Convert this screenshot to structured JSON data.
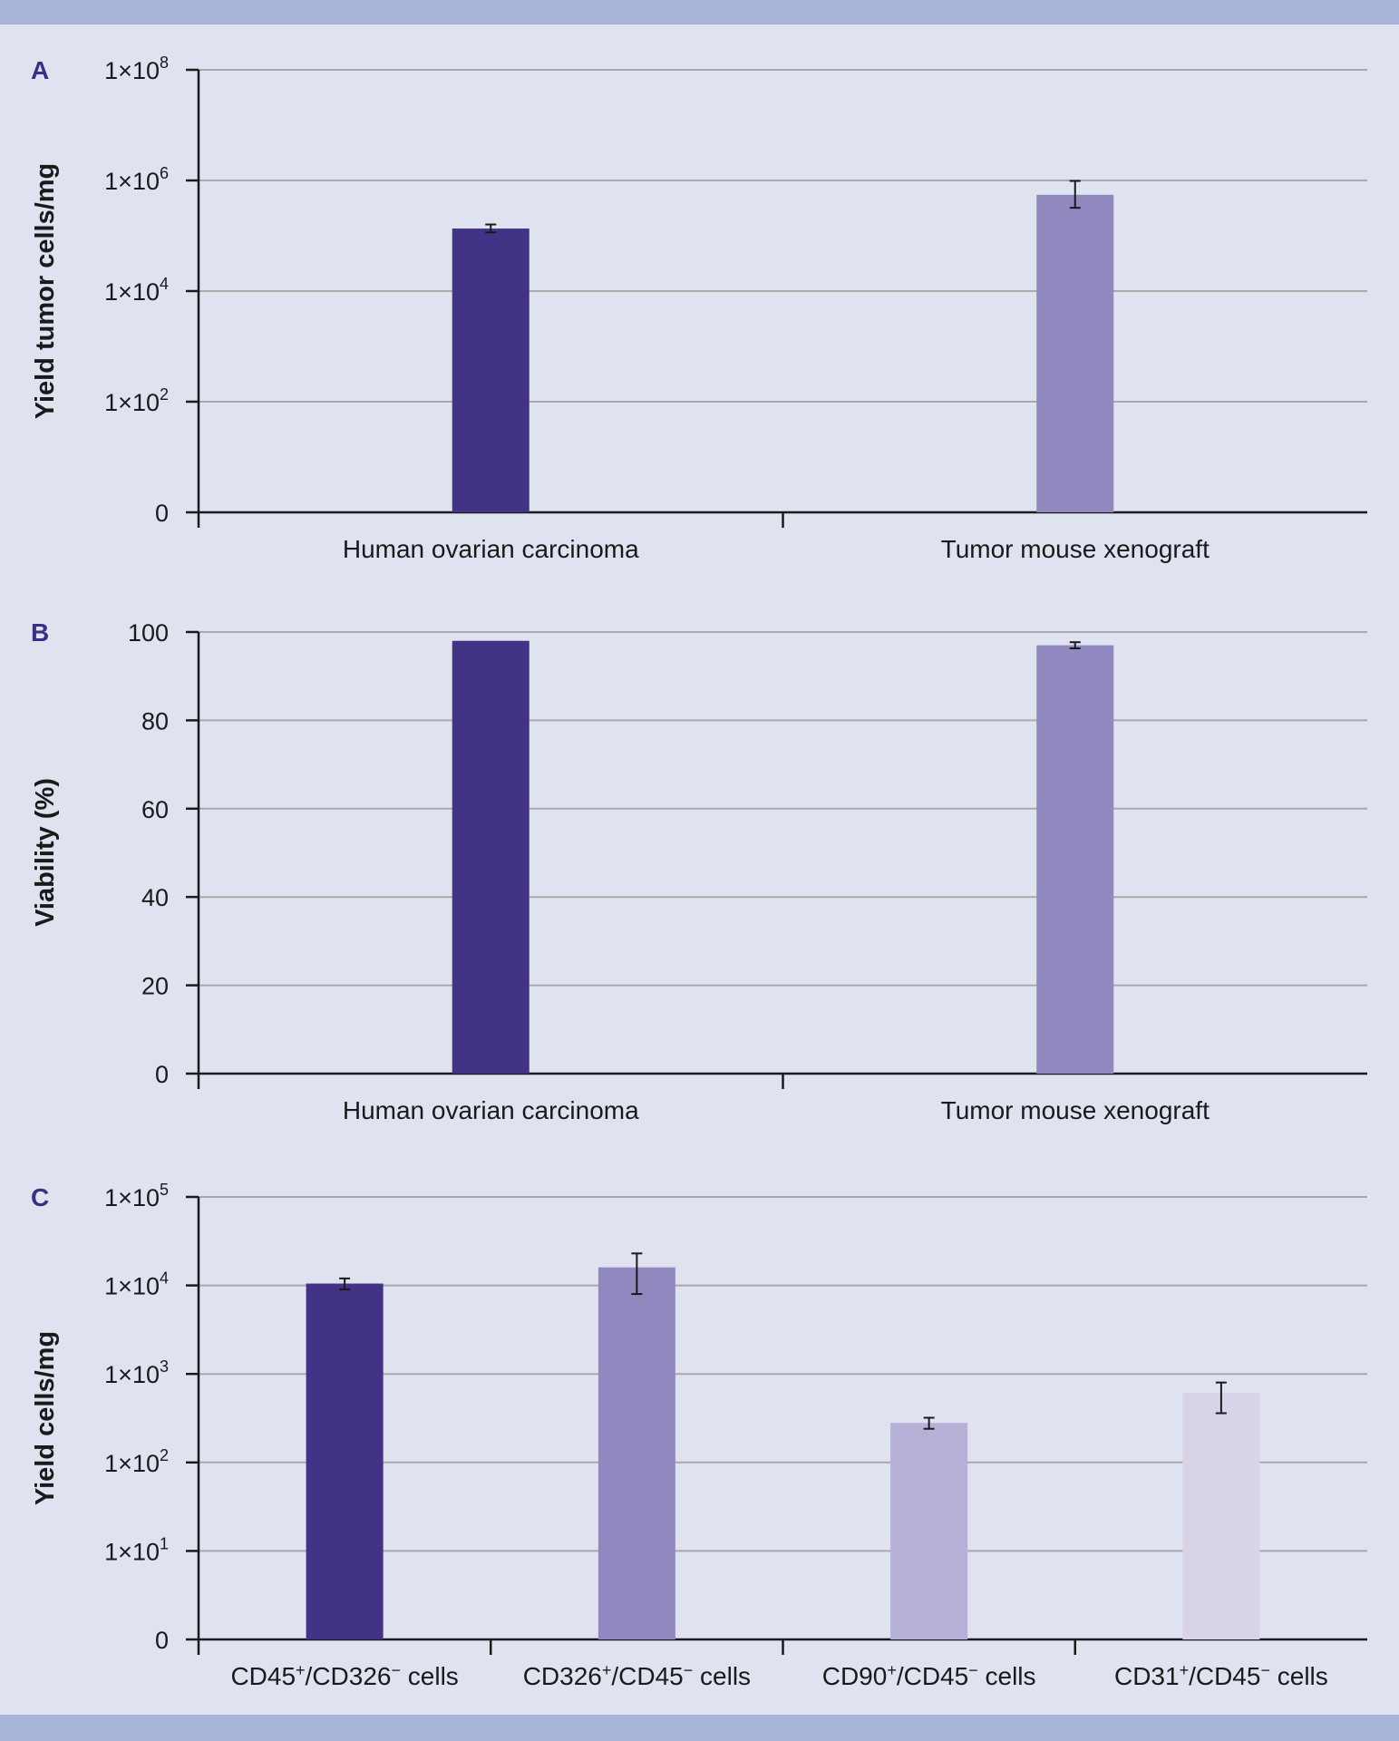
{
  "colors": {
    "background": "#dfe3f0",
    "band": "#a8b5da",
    "grid": "#a9a9a9",
    "axis": "#1a1a1a",
    "panel_letter": "#3b2e86",
    "bar_1": "#423387",
    "bar_2": "#9288c0",
    "bar_3": "#b8b1d7",
    "bar_4": "#d9d3e8"
  },
  "chart_data": [
    {
      "panel": "A",
      "type": "bar",
      "ylabel": "Yield tumor cells/mg",
      "yscale": "log",
      "categories": [
        "Human ovarian carcinoma",
        "Tumor mouse xenograft"
      ],
      "values": [
        135000,
        550000
      ],
      "error_low": [
        115000,
        320000
      ],
      "error_high": [
        160000,
        980000
      ],
      "ylim": [
        1,
        100000000
      ],
      "yticks": [
        {
          "value": 1,
          "base": "0",
          "exp": ""
        },
        {
          "value": 100,
          "base": "1×10",
          "exp": "2"
        },
        {
          "value": 10000,
          "base": "1×10",
          "exp": "4"
        },
        {
          "value": 1000000,
          "base": "1×10",
          "exp": "6"
        },
        {
          "value": 100000000,
          "base": "1×10",
          "exp": "8"
        }
      ],
      "grid": true
    },
    {
      "panel": "B",
      "type": "bar",
      "ylabel": "Viability (%)",
      "yscale": "linear",
      "categories": [
        "Human ovarian carcinoma",
        "Tumor mouse xenograft"
      ],
      "values": [
        98,
        97
      ],
      "error_low": [
        null,
        96.3
      ],
      "error_high": [
        null,
        97.7
      ],
      "ylim": [
        0,
        100
      ],
      "yticks": [
        {
          "value": 0,
          "base": "0",
          "exp": ""
        },
        {
          "value": 20,
          "base": "20",
          "exp": ""
        },
        {
          "value": 40,
          "base": "40",
          "exp": ""
        },
        {
          "value": 60,
          "base": "60",
          "exp": ""
        },
        {
          "value": 80,
          "base": "80",
          "exp": ""
        },
        {
          "value": 100,
          "base": "100",
          "exp": ""
        }
      ],
      "grid": true
    },
    {
      "panel": "C",
      "type": "bar",
      "ylabel": "Yield cells/mg",
      "yscale": "log",
      "categories": [
        {
          "parts": [
            [
              "CD45",
              ""
            ],
            [
              "+",
              "sup"
            ],
            [
              "/CD326",
              ""
            ],
            [
              "−",
              "sup"
            ],
            [
              " cells",
              ""
            ]
          ]
        },
        {
          "parts": [
            [
              "CD326",
              ""
            ],
            [
              "+",
              "sup"
            ],
            [
              "/CD45",
              ""
            ],
            [
              "−",
              "sup"
            ],
            [
              " cells",
              ""
            ]
          ]
        },
        {
          "parts": [
            [
              "CD90",
              ""
            ],
            [
              "+",
              "sup"
            ],
            [
              "/CD45",
              ""
            ],
            [
              "−",
              "sup"
            ],
            [
              " cells",
              ""
            ]
          ]
        },
        {
          "parts": [
            [
              "CD31",
              ""
            ],
            [
              "+",
              "sup"
            ],
            [
              "/CD45",
              ""
            ],
            [
              "−",
              "sup"
            ],
            [
              " cells",
              ""
            ]
          ]
        }
      ],
      "values": [
        10500,
        16000,
        280,
        610
      ],
      "error_low": [
        9000,
        8000,
        240,
        360
      ],
      "error_high": [
        12000,
        23000,
        320,
        800
      ],
      "ylim": [
        1,
        100000
      ],
      "yticks": [
        {
          "value": 1,
          "base": "0",
          "exp": ""
        },
        {
          "value": 10,
          "base": "1×10",
          "exp": "1"
        },
        {
          "value": 100,
          "base": "1×10",
          "exp": "2"
        },
        {
          "value": 1000,
          "base": "1×10",
          "exp": "3"
        },
        {
          "value": 10000,
          "base": "1×10",
          "exp": "4"
        },
        {
          "value": 100000,
          "base": "1×10",
          "exp": "5"
        }
      ],
      "grid": true
    }
  ]
}
